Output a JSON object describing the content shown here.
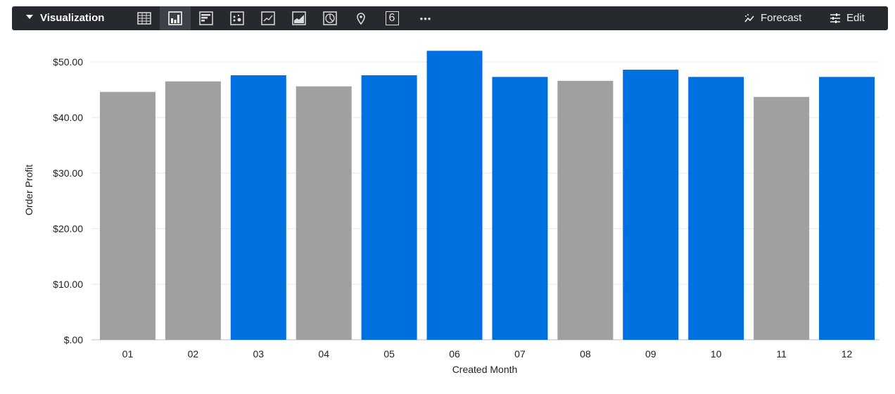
{
  "toolbar": {
    "title": "Visualization",
    "icons": [
      "table-icon",
      "column-chart-icon",
      "bar-chart-icon",
      "scatter-icon",
      "line-chart-icon",
      "area-chart-icon",
      "pie-chart-icon",
      "map-pin-icon",
      "single-value-icon",
      "more-icon"
    ],
    "active_icon": "column-chart-icon",
    "single_value_glyph": "6",
    "more_glyph": "•••",
    "forecast_label": "Forecast",
    "edit_label": "Edit"
  },
  "chart_data": {
    "type": "bar",
    "xlabel": "Created Month",
    "ylabel": "Order Profit",
    "categories": [
      "01",
      "02",
      "03",
      "04",
      "05",
      "06",
      "07",
      "08",
      "09",
      "10",
      "11",
      "12"
    ],
    "values": [
      44.6,
      46.5,
      47.6,
      45.6,
      47.6,
      52.0,
      47.3,
      46.6,
      48.6,
      47.3,
      43.7,
      47.3
    ],
    "colors": [
      "#a0a0a0",
      "#a0a0a0",
      "#0070e0",
      "#a0a0a0",
      "#0070e0",
      "#0070e0",
      "#0070e0",
      "#a0a0a0",
      "#0070e0",
      "#0070e0",
      "#a0a0a0",
      "#0070e0"
    ],
    "yticks": [
      0,
      10,
      20,
      30,
      40,
      50
    ],
    "ytick_labels": [
      "$.00",
      "$10.00",
      "$20.00",
      "$30.00",
      "$40.00",
      "$50.00"
    ],
    "ylim": [
      0,
      55
    ],
    "grid": true
  }
}
